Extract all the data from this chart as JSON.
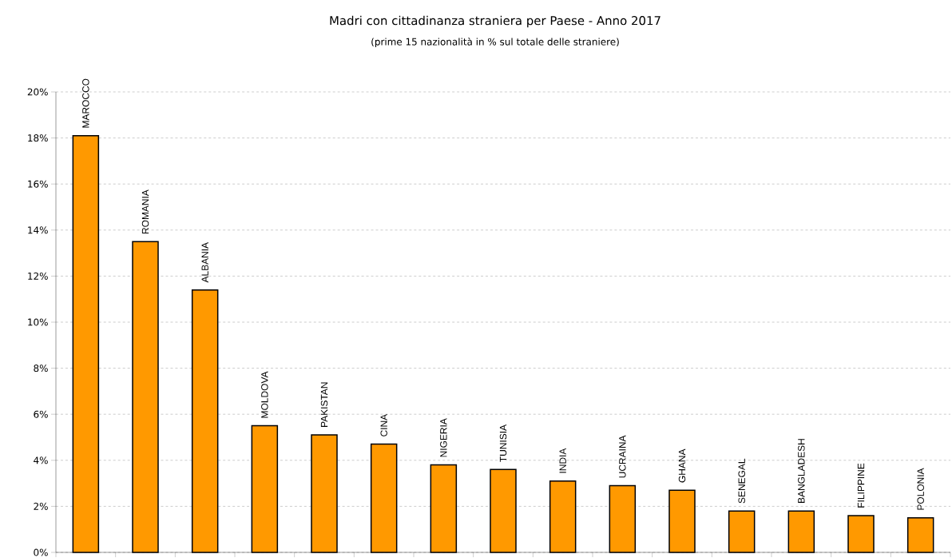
{
  "chart_data": {
    "type": "bar",
    "title": "Madri con cittadinanza straniera per Paese - Anno 2017",
    "subtitle": "(prime 15 nazionalità in % sul totale delle straniere)",
    "categories": [
      "MAROCCO",
      "ROMANIA",
      "ALBANIA",
      "MOLDOVA",
      "PAKISTAN",
      "CINA",
      "NIGERIA",
      "TUNISIA",
      "INDIA",
      "UCRAINA",
      "GHANA",
      "SENEGAL",
      "BANGLADESH",
      "FILIPPINE",
      "POLONIA"
    ],
    "values": [
      18.1,
      13.5,
      11.4,
      5.5,
      5.1,
      4.7,
      3.8,
      3.6,
      3.1,
      2.9,
      2.7,
      1.8,
      1.8,
      1.6,
      1.5
    ],
    "color": "#ff9900",
    "ylim": [
      0,
      20
    ],
    "yticks": [
      {
        "value": 0,
        "label": "0%"
      },
      {
        "value": 2,
        "label": "2%"
      },
      {
        "value": 4,
        "label": "4%"
      },
      {
        "value": 6,
        "label": "6%"
      },
      {
        "value": 8,
        "label": "8%"
      },
      {
        "value": 10,
        "label": "10%"
      },
      {
        "value": 12,
        "label": "12%"
      },
      {
        "value": 14,
        "label": "14%"
      },
      {
        "value": 16,
        "label": "16%"
      },
      {
        "value": 18,
        "label": "18%"
      },
      {
        "value": 20,
        "label": "20%"
      }
    ],
    "grid": "y"
  }
}
